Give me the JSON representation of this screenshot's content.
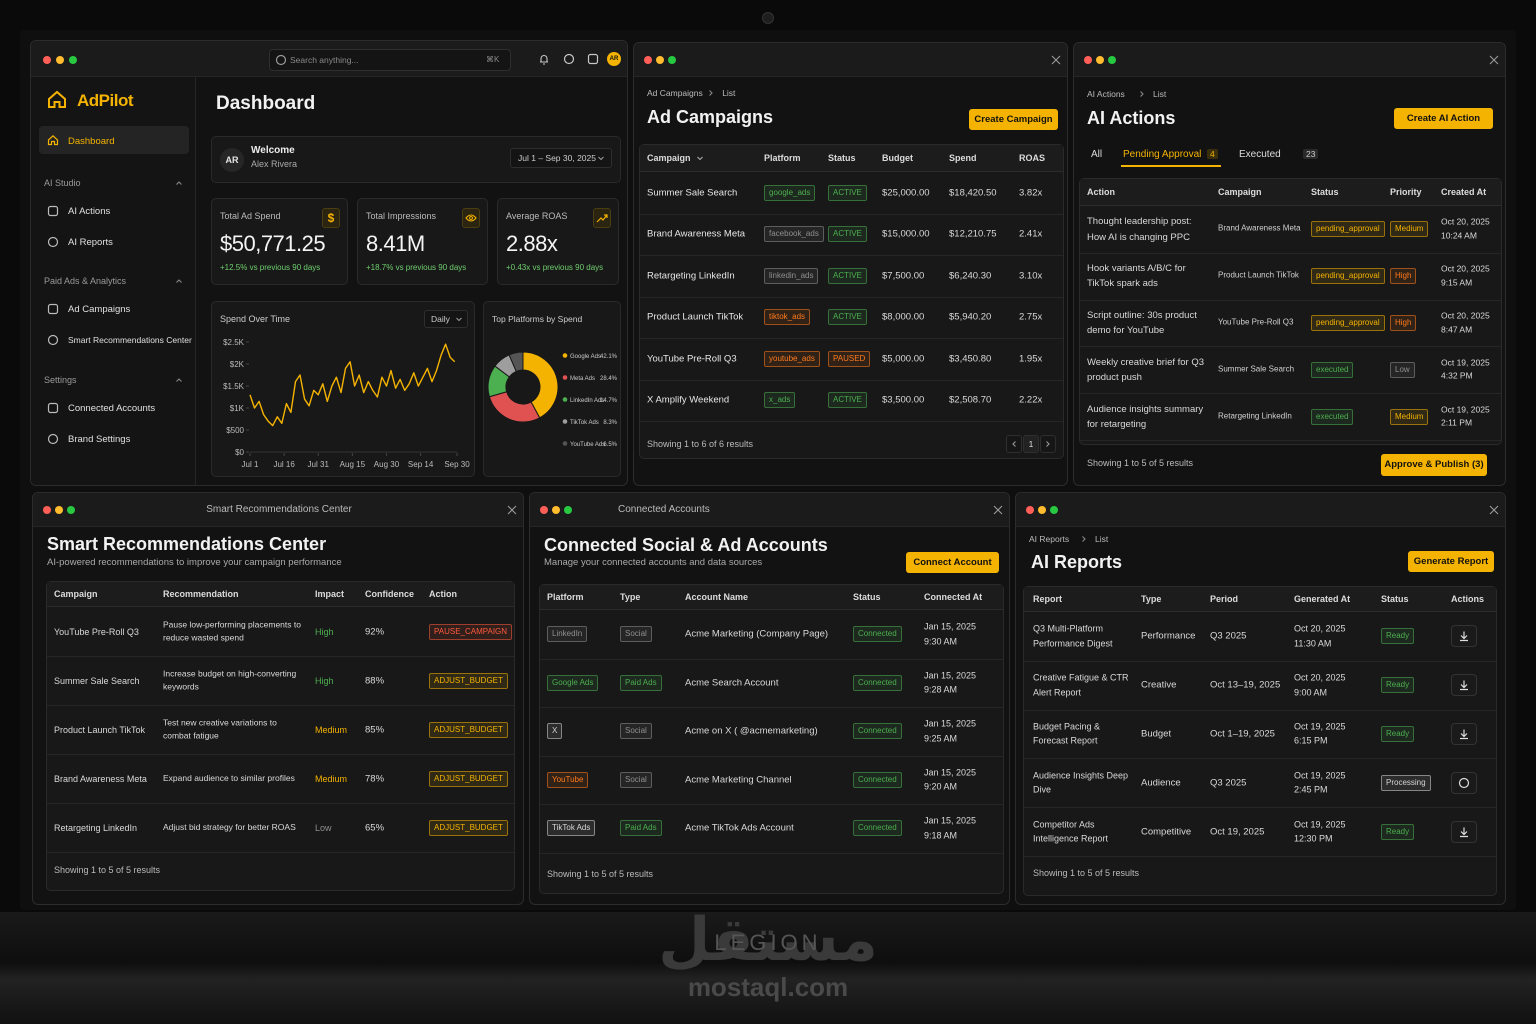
{
  "watermark": {
    "arabic": "مستقل",
    "brand": "LEGION",
    "site": "mostaql.com"
  },
  "dashboard": {
    "search": "Search anything...",
    "shortcut": "⌘K",
    "user_initials": "AR",
    "app_name": "AdPilot",
    "nav_active": "Dashboard",
    "nav_sections": [
      {
        "title": "AI Studio",
        "items": [
          "AI Actions",
          "AI Reports"
        ]
      },
      {
        "title": "Paid Ads & Analytics",
        "items": [
          "Ad Campaigns",
          "Smart Recommendations Center"
        ]
      },
      {
        "title": "Settings",
        "items": [
          "Connected Accounts",
          "Brand Settings"
        ]
      }
    ],
    "title": "Dashboard",
    "welcome": {
      "initials": "AR",
      "greeting": "Welcome",
      "name": "Alex Rivera",
      "date_range": "Jul 1 – Sep 30, 2025"
    },
    "kpis": [
      {
        "label": "Total Ad Spend",
        "value": "$50,771.25",
        "change": "+12.5% vs previous 90 days",
        "icon": "$"
      },
      {
        "label": "Total Impressions",
        "value": "8.41M",
        "change": "+18.7% vs previous 90 days"
      },
      {
        "label": "Average ROAS",
        "value": "2.88x",
        "change": "+0.43x vs previous 90 days"
      }
    ],
    "spend_chart": {
      "type": "line",
      "title": "Spend Over Time",
      "granularity": "Daily",
      "color": "#f5b301",
      "x": [
        0,
        2,
        4,
        6,
        8,
        10,
        12,
        14,
        16,
        18,
        20,
        22,
        24,
        26,
        28,
        30,
        32,
        34,
        36,
        38,
        40,
        42,
        44,
        46,
        48,
        50,
        52,
        54,
        56,
        58,
        60,
        62,
        64,
        66,
        68,
        70,
        72,
        74,
        76,
        78,
        80,
        82,
        84,
        86,
        88,
        90
      ],
      "values": [
        1300,
        1000,
        1150,
        850,
        700,
        600,
        800,
        650,
        1100,
        900,
        1600,
        1750,
        1200,
        1050,
        1400,
        1300,
        1550,
        1150,
        1500,
        1700,
        1350,
        1900,
        2050,
        1500,
        1750,
        1350,
        1600,
        1400,
        1250,
        1700,
        1500,
        1850,
        1450,
        1650,
        1400,
        1550,
        1800,
        1500,
        1700,
        1900,
        1600,
        1850,
        2200,
        2450,
        2150,
        2050
      ],
      "xlim": [
        0,
        91
      ],
      "xticks": [
        {
          "value": 0,
          "label": "Jul 1"
        },
        {
          "value": 15,
          "label": "Jul 16"
        },
        {
          "value": 30,
          "label": "Jul 31"
        },
        {
          "value": 45,
          "label": "Aug 15"
        },
        {
          "value": 60,
          "label": "Aug 30"
        },
        {
          "value": 75,
          "label": "Sep 14"
        },
        {
          "value": 91,
          "label": "Sep 30"
        }
      ],
      "ylim": [
        0,
        2500
      ],
      "yticks": [
        {
          "value": 0,
          "label": "$0"
        },
        {
          "value": 500,
          "label": "$500"
        },
        {
          "value": 1000,
          "label": "$1K"
        },
        {
          "value": 1500,
          "label": "$1.5K"
        },
        {
          "value": 2000,
          "label": "$2K"
        },
        {
          "value": 2500,
          "label": "$2.5K"
        }
      ]
    },
    "platform_chart": {
      "type": "pie",
      "title": "Top Platforms by Spend",
      "categories": [
        "Google Ads",
        "Meta Ads",
        "LinkedIn Ads",
        "TikTok Ads",
        "YouTube Ads"
      ],
      "values": [
        42.1,
        28.4,
        14.7,
        8.3,
        6.5
      ],
      "value_labels": [
        "42.1%",
        "28.4%",
        "14.7%",
        "8.3%",
        "6.5%"
      ],
      "colors": [
        "#f5b301",
        "#e05252",
        "#4caf50",
        "#9e9e9e",
        "#555555"
      ]
    }
  },
  "ad_campaigns": {
    "breadcrumb": [
      "Ad Campaigns",
      "List"
    ],
    "title": "Ad Campaigns",
    "button": "Create Campaign",
    "columns": [
      "Campaign",
      "Platform",
      "Status",
      "Budget",
      "Spend",
      "ROAS"
    ],
    "rows": [
      [
        "Summer Sale Search",
        "google_ads",
        "ACTIVE",
        "$25,000.00",
        "$18,420.50",
        "3.82x"
      ],
      [
        "Brand Awareness Meta",
        "facebook_ads",
        "ACTIVE",
        "$15,000.00",
        "$12,210.75",
        "2.41x"
      ],
      [
        "Retargeting LinkedIn",
        "linkedin_ads",
        "ACTIVE",
        "$7,500.00",
        "$6,240.30",
        "3.10x"
      ],
      [
        "Product Launch TikTok",
        "tiktok_ads",
        "ACTIVE",
        "$8,000.00",
        "$5,940.20",
        "2.75x"
      ],
      [
        "YouTube Pre-Roll Q3",
        "youtube_ads",
        "PAUSED",
        "$5,000.00",
        "$3,450.80",
        "1.95x"
      ],
      [
        "X Amplify Weekend",
        "x_ads",
        "ACTIVE",
        "$3,500.00",
        "$2,508.70",
        "2.22x"
      ]
    ],
    "footer": "Showing 1 to 6 of 6 results",
    "page": "1"
  },
  "ai_actions": {
    "breadcrumb": [
      "AI Actions",
      "List"
    ],
    "title": "AI Actions",
    "button": "Create AI Action",
    "tabs": [
      {
        "label": "All"
      },
      {
        "label": "Pending Approval",
        "count": 4
      },
      {
        "label": "Executed",
        "count": 23
      }
    ],
    "columns": [
      "Action",
      "Campaign",
      "Status",
      "Priority",
      "Created At"
    ],
    "rows": [
      [
        "Thought leadership post: How AI is changing PPC",
        "Brand Awareness Meta",
        "pending_approval",
        "Medium",
        [
          "Oct 20, 2025",
          "10:24 AM"
        ]
      ],
      [
        "Hook variants A/B/C for TikTok spark ads",
        "Product Launch TikTok",
        "pending_approval",
        "High",
        [
          "Oct 20, 2025",
          "9:15 AM"
        ]
      ],
      [
        "Script outline: 30s product demo for YouTube",
        "YouTube Pre-Roll Q3",
        "pending_approval",
        "High",
        [
          "Oct 20, 2025",
          "8:47 AM"
        ]
      ],
      [
        "Weekly creative brief for Q3 product push",
        "Summer Sale Search",
        "executed",
        "Low",
        [
          "Oct 19, 2025",
          "4:32 PM"
        ]
      ],
      [
        "Audience insights summary for retargeting",
        "Retargeting LinkedIn",
        "executed",
        "Medium",
        [
          "Oct 19, 2025",
          "2:11 PM"
        ]
      ]
    ],
    "footer": "Showing 1 to 5 of 5 results",
    "approve_button": "Approve & Publish (3)"
  },
  "smart_recommendations": {
    "window_title": "Smart Recommendations Center",
    "title": "Smart Recommendations Center",
    "subtitle": "AI-powered recommendations to improve your campaign performance",
    "columns": [
      "Campaign",
      "Recommendation",
      "Impact",
      "Confidence",
      "Action"
    ],
    "rows": [
      [
        "YouTube Pre-Roll Q3",
        "Pause low-performing placements to reduce wasted spend",
        "High",
        "92%",
        "PAUSE_CAMPAIGN"
      ],
      [
        "Summer Sale Search",
        "Increase budget on high-converting keywords",
        "High",
        "88%",
        "ADJUST_BUDGET"
      ],
      [
        "Product Launch TikTok",
        "Test new creative variations to combat fatigue",
        "Medium",
        "85%",
        "ADJUST_BUDGET"
      ],
      [
        "Brand Awareness Meta",
        "Expand audience to similar profiles",
        "Medium",
        "78%",
        "ADJUST_BUDGET"
      ],
      [
        "Retargeting LinkedIn",
        "Adjust bid strategy for better ROAS",
        "Low",
        "65%",
        "ADJUST_BUDGET"
      ]
    ],
    "footer": "Showing 1 to 5 of 5 results"
  },
  "connected_accounts": {
    "window_title": "Connected Accounts",
    "title": "Connected Social & Ad Accounts",
    "subtitle": "Manage your connected accounts and data sources",
    "button": "Connect Account",
    "columns": [
      "Platform",
      "Type",
      "Account Name",
      "Status",
      "Connected At"
    ],
    "rows": [
      [
        "LinkedIn",
        "Social",
        "Acme Marketing (Company Page)",
        "Connected",
        [
          "Jan 15, 2025",
          "9:30 AM"
        ]
      ],
      [
        "Google Ads",
        "Paid Ads",
        "Acme Search Account",
        "Connected",
        [
          "Jan 15, 2025",
          "9:28 AM"
        ]
      ],
      [
        "X",
        "Social",
        "Acme on X ( @acmemarketing)",
        "Connected",
        [
          "Jan 15, 2025",
          "9:25 AM"
        ]
      ],
      [
        "YouTube",
        "Social",
        "Acme Marketing Channel",
        "Connected",
        [
          "Jan 15, 2025",
          "9:20 AM"
        ]
      ],
      [
        "TikTok Ads",
        "Paid Ads",
        "Acme TikTok Ads Account",
        "Connected",
        [
          "Jan 15, 2025",
          "9:18 AM"
        ]
      ]
    ],
    "footer": "Showing 1 to 5 of 5 results"
  },
  "ai_reports": {
    "breadcrumb": [
      "AI Reports",
      "List"
    ],
    "title": "AI Reports",
    "button": "Generate Report",
    "columns": [
      "Report",
      "Type",
      "Period",
      "Generated At",
      "Status",
      "Actions"
    ],
    "rows": [
      [
        "Q3 Multi-Platform Performance Digest",
        "Performance",
        "Q3 2025",
        [
          "Oct 20, 2025",
          "11:30 AM"
        ],
        "Ready"
      ],
      [
        "Creative Fatigue & CTR Alert Report",
        "Creative",
        "Oct 13–19, 2025",
        [
          "Oct 20, 2025",
          "9:00 AM"
        ],
        "Ready"
      ],
      [
        "Budget Pacing & Forecast Report",
        "Budget",
        "Oct 1–19, 2025",
        [
          "Oct 19, 2025",
          "6:15 PM"
        ],
        "Ready"
      ],
      [
        "Audience Insights Deep Dive",
        "Audience",
        "Q3 2025",
        [
          "Oct 19, 2025",
          "2:45 PM"
        ],
        "Processing"
      ],
      [
        "Competitor Ads Intelligence Report",
        "Competitive",
        "Oct 19, 2025",
        [
          "Oct 19, 2025",
          "12:30 PM"
        ],
        "Ready"
      ]
    ],
    "footer": "Showing 1 to 5 of 5 results"
  }
}
